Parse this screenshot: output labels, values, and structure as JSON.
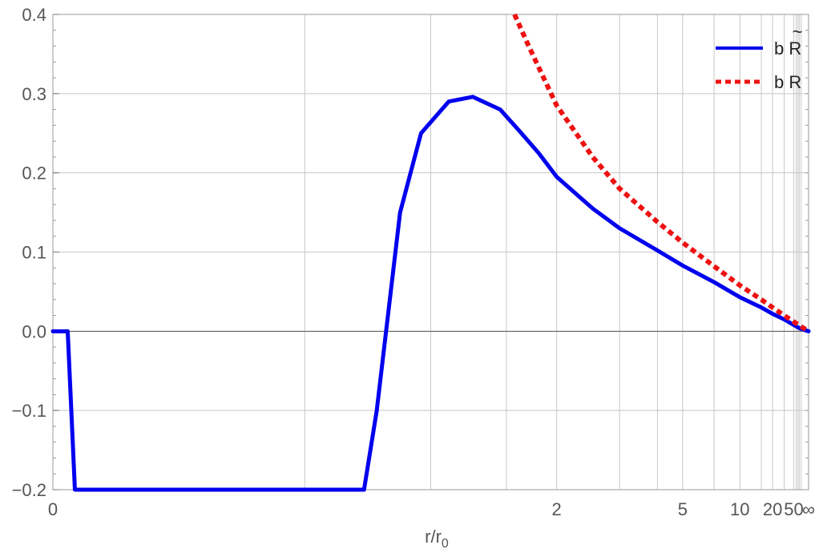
{
  "chart_data": {
    "type": "line",
    "xlabel": "r/r",
    "xlabel_sub": "0",
    "x_scale": "compactified (x maps to 1 - 1/x; r/r0 = 0 … ∞)",
    "xlim": [
      0,
      "∞"
    ],
    "ylim": [
      -0.2,
      0.4
    ],
    "grid": true,
    "legend_position": "top-right",
    "x_ticks": [
      {
        "value": 0,
        "label": "0"
      },
      {
        "value": 2,
        "label": "2"
      },
      {
        "value": 5,
        "label": "5"
      },
      {
        "value": 10,
        "label": "10"
      },
      {
        "value": 20,
        "label": "20"
      },
      {
        "value": 50,
        "label": "50"
      },
      {
        "value": "∞",
        "label": "∞"
      }
    ],
    "x_gridlines": [
      0.5,
      1,
      1.5,
      2,
      3,
      4,
      5,
      7,
      10,
      15,
      20,
      30,
      50,
      60,
      70,
      80,
      100
    ],
    "y_ticks": [
      {
        "value": 0.4,
        "label": "0.4"
      },
      {
        "value": 0.3,
        "label": "0.3"
      },
      {
        "value": 0.2,
        "label": "0.2"
      },
      {
        "value": 0.1,
        "label": "0.1"
      },
      {
        "value": 0.0,
        "label": "0.0"
      },
      {
        "value": -0.1,
        "label": "−0.1"
      },
      {
        "value": -0.2,
        "label": "−0.2"
      }
    ],
    "series": [
      {
        "name": "b R̃",
        "legend_main": "b R",
        "legend_accent": "~",
        "color": "#0000ee",
        "style": "solid",
        "points": [
          [
            0.0,
            0.0
          ],
          [
            0.02,
            0.0
          ],
          [
            0.03,
            -0.2
          ],
          [
            0.7,
            -0.2
          ],
          [
            0.75,
            -0.1
          ],
          [
            0.85,
            0.15
          ],
          [
            0.95,
            0.25
          ],
          [
            1.1,
            0.29
          ],
          [
            1.25,
            0.296
          ],
          [
            1.45,
            0.28
          ],
          [
            1.6,
            0.255
          ],
          [
            1.8,
            0.225
          ],
          [
            2.0,
            0.195
          ],
          [
            2.5,
            0.155
          ],
          [
            3.0,
            0.13
          ],
          [
            4.0,
            0.102
          ],
          [
            5.0,
            0.083
          ],
          [
            7.0,
            0.062
          ],
          [
            10.0,
            0.043
          ],
          [
            15.0,
            0.03
          ],
          [
            20.0,
            0.022
          ],
          [
            30.0,
            0.015
          ],
          [
            50.0,
            0.008
          ],
          [
            80.0,
            0.004
          ],
          [
            200.0,
            0.0014
          ],
          [
            "∞",
            0.0
          ]
        ]
      },
      {
        "name": "b R",
        "legend_main": "b R",
        "legend_accent": "",
        "color": "#ee1111",
        "style": "dotted",
        "points": [
          [
            1.57,
            0.4
          ],
          [
            1.7,
            0.36
          ],
          [
            2.0,
            0.285
          ],
          [
            2.5,
            0.22
          ],
          [
            3.0,
            0.18
          ],
          [
            4.0,
            0.138
          ],
          [
            5.0,
            0.112
          ],
          [
            7.0,
            0.082
          ],
          [
            10.0,
            0.058
          ],
          [
            15.0,
            0.04
          ],
          [
            20.0,
            0.03
          ],
          [
            30.0,
            0.02
          ],
          [
            50.0,
            0.012
          ],
          [
            80.0,
            0.0075
          ],
          [
            200.0,
            0.003
          ],
          [
            "∞",
            0.0
          ]
        ]
      }
    ]
  }
}
